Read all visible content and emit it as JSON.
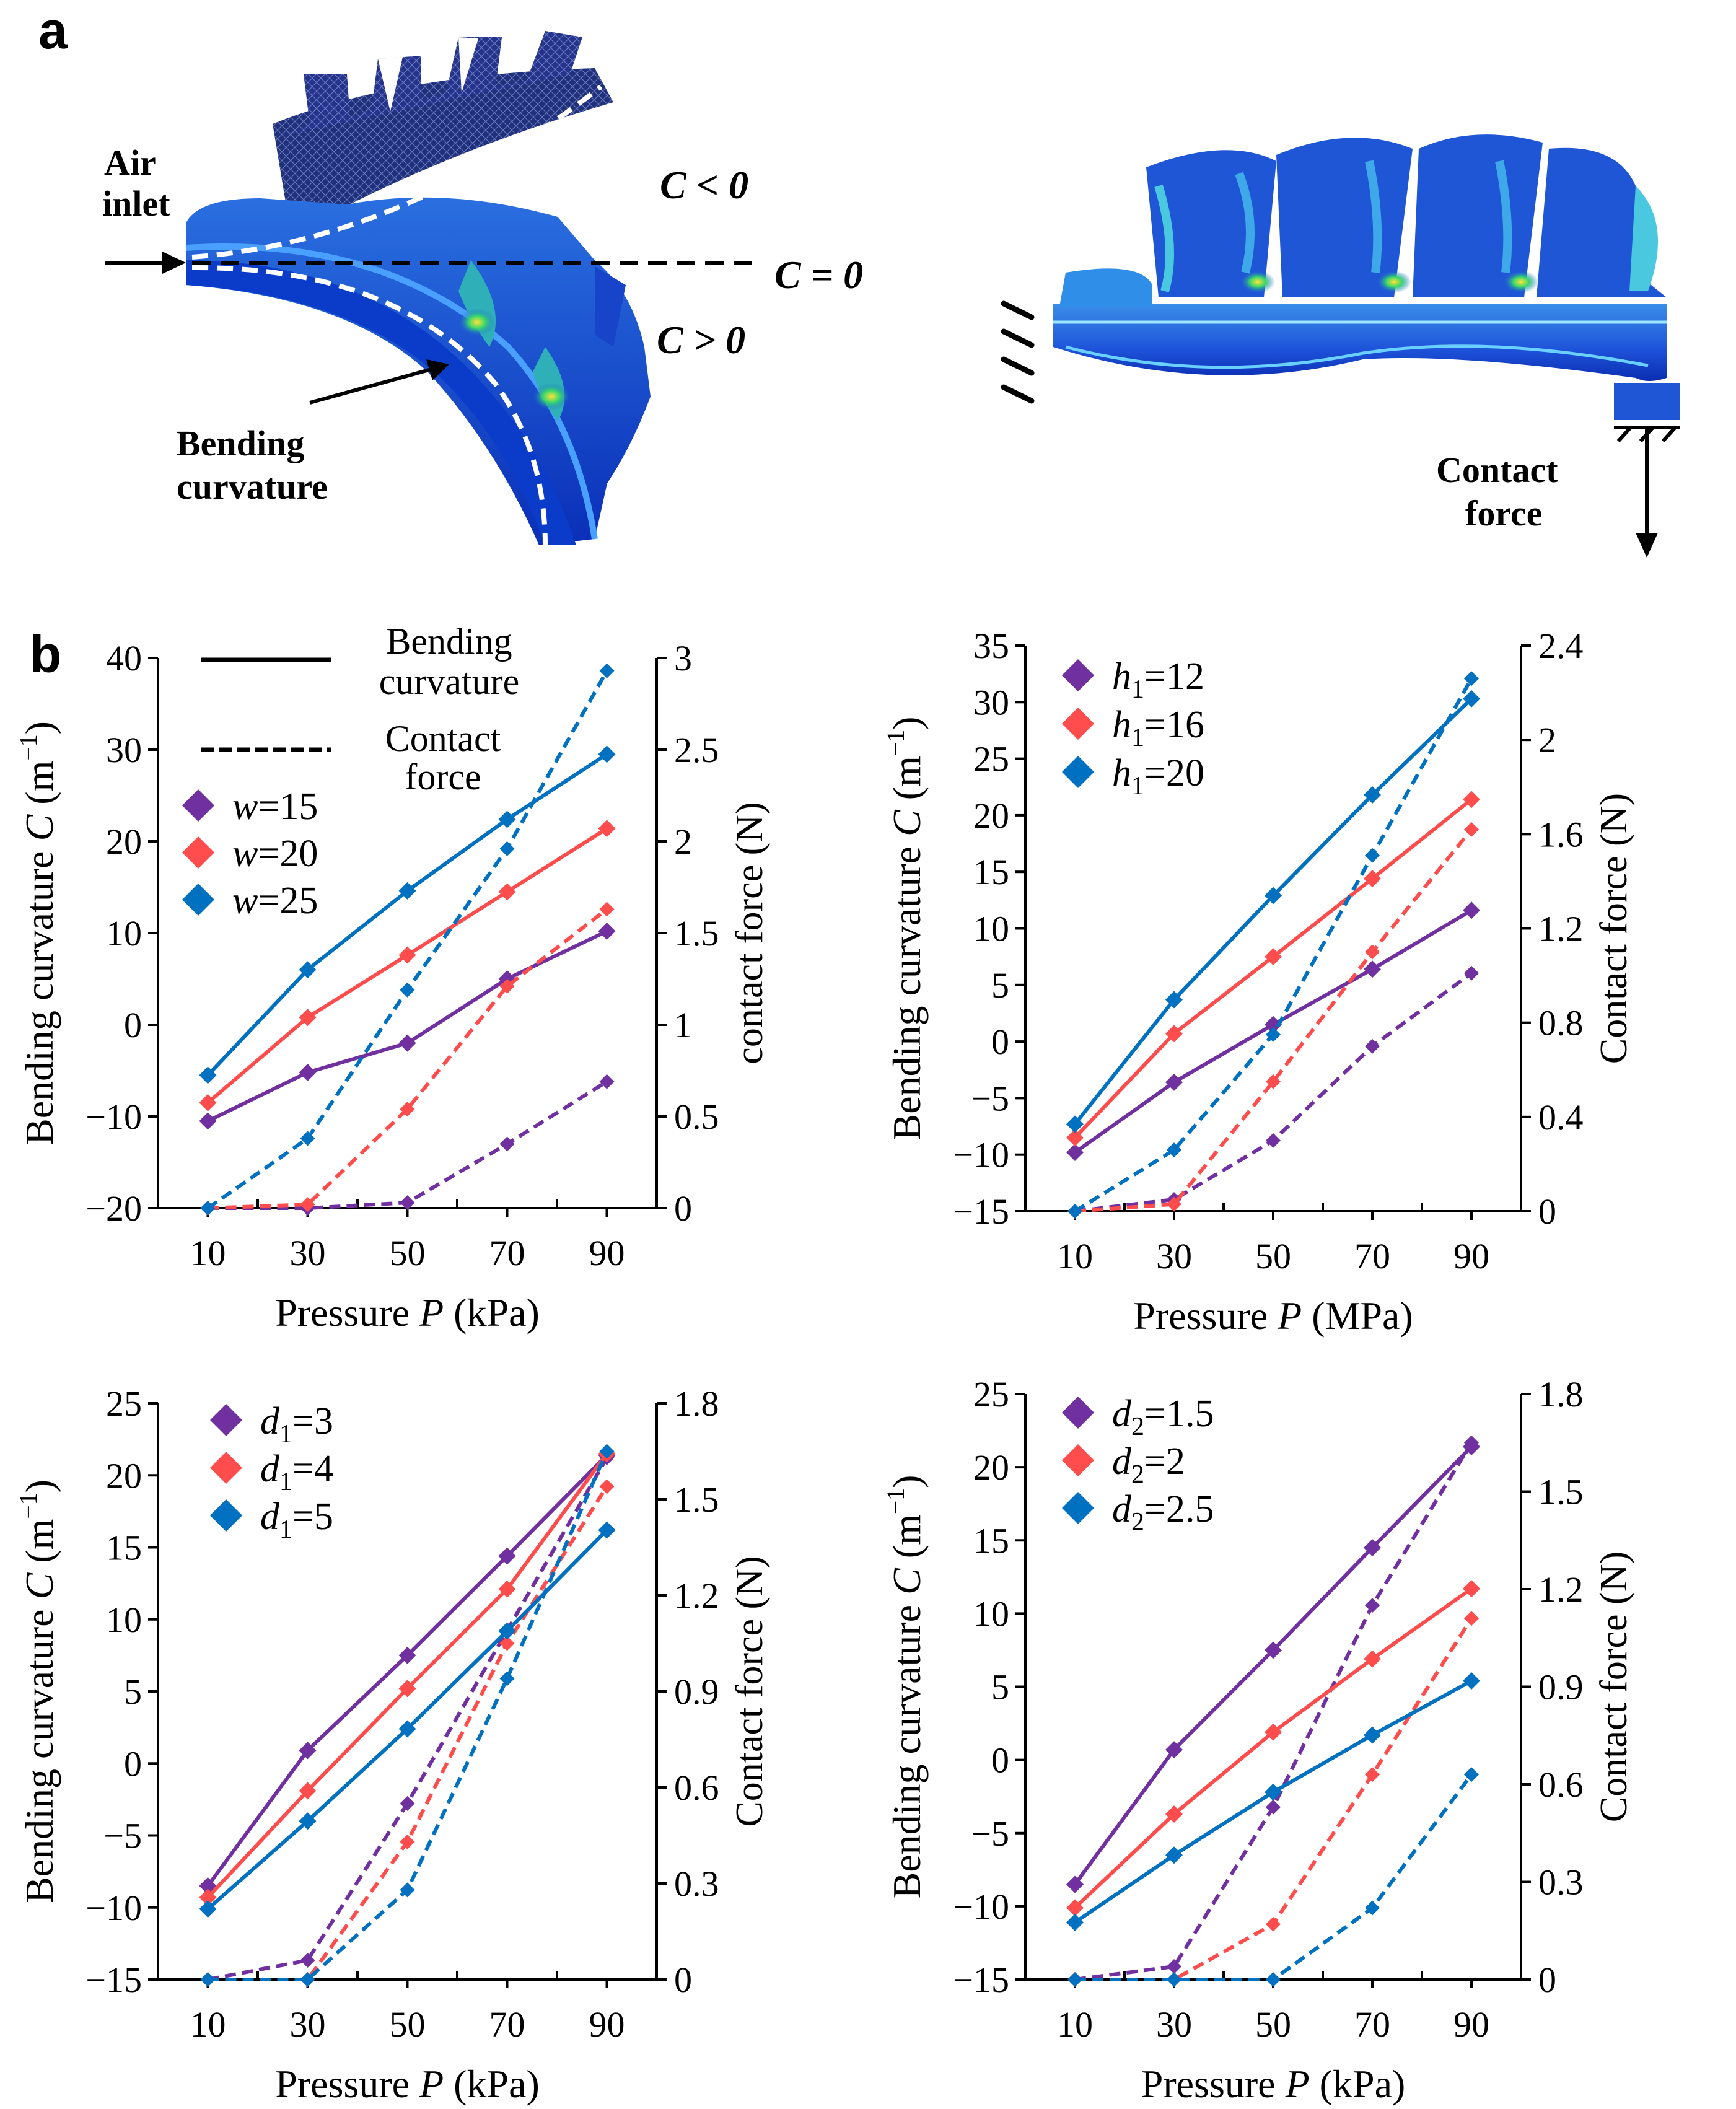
{
  "panel_a": {
    "letter": "a",
    "air_inlet_line1": "Air",
    "air_inlet_line2": "inlet",
    "c_less": "C < 0",
    "c_zero": "C = 0",
    "c_greater": "C > 0",
    "bending_line1": "Bending",
    "bending_line2": "curvature",
    "contact_line1": "Contact",
    "contact_line2": "force"
  },
  "panel_b": {
    "letter": "b"
  },
  "colors": {
    "purple": "#7030a0",
    "red": "#ff4d4d",
    "blue": "#0070c0",
    "axis": "#000000"
  },
  "chart_data": [
    {
      "id": "w",
      "type": "line",
      "xlabel": "Pressure P (kPa)",
      "ylabel_left": "Bending curvature C (m⁻¹)",
      "ylabel_right": "contact force (N)",
      "x": [
        10,
        30,
        50,
        70,
        90
      ],
      "xlim": [
        0,
        100
      ],
      "ylim_left": [
        -20,
        40
      ],
      "yticks_left": [
        -20,
        -10,
        0,
        10,
        20,
        30,
        40
      ],
      "yticks_left_labels": [
        "−20",
        "−10",
        "0",
        "10",
        "20",
        "30",
        "40"
      ],
      "ylim_right": [
        0,
        3
      ],
      "yticks_right": [
        0,
        0.5,
        1,
        1.5,
        2,
        2.5,
        3
      ],
      "yticks_right_labels": [
        "0",
        "0.5",
        "1",
        "1.5",
        "2",
        "2.5",
        "3"
      ],
      "style_legend": {
        "solid": "Bending curvature",
        "dashed": "Contact force"
      },
      "series": [
        {
          "name": "w=15",
          "color": "purple",
          "curvature": [
            -10.5,
            -5.2,
            -2.0,
            5.0,
            10.2
          ],
          "force": [
            0,
            0,
            0.03,
            0.35,
            0.69
          ]
        },
        {
          "name": "w=20",
          "color": "red",
          "curvature": [
            -8.5,
            0.8,
            7.6,
            14.5,
            21.4
          ],
          "force": [
            0,
            0.02,
            0.54,
            1.21,
            1.63
          ]
        },
        {
          "name": "w=25",
          "color": "blue",
          "curvature": [
            -5.5,
            6.0,
            14.6,
            22.4,
            29.5
          ],
          "force": [
            0,
            0.38,
            1.19,
            1.96,
            2.93
          ]
        }
      ]
    },
    {
      "id": "h1",
      "type": "line",
      "xlabel": "Pressure P (MPa)",
      "ylabel_left": "Bending curvature C (m⁻¹)",
      "ylabel_right": "Contact force (N)",
      "x": [
        10,
        30,
        50,
        70,
        90
      ],
      "xlim": [
        0,
        100
      ],
      "ylim_left": [
        -15,
        35
      ],
      "yticks_left": [
        -15,
        -10,
        -5,
        0,
        5,
        10,
        15,
        20,
        25,
        30,
        35
      ],
      "yticks_left_labels": [
        "−15",
        "−10",
        "−5",
        "0",
        "5",
        "10",
        "15",
        "20",
        "25",
        "30",
        "35"
      ],
      "ylim_right": [
        0,
        2.4
      ],
      "yticks_right": [
        0,
        0.4,
        0.8,
        1.2,
        1.6,
        2,
        2.4
      ],
      "yticks_right_labels": [
        "0",
        "0.4",
        "0.8",
        "1.2",
        "1.6",
        "2",
        "2.4"
      ],
      "series": [
        {
          "name": "h1=12",
          "name_base": "h",
          "name_sub": "1",
          "name_rest": "=12",
          "color": "purple",
          "curvature": [
            -9.8,
            -3.6,
            1.5,
            6.4,
            11.6
          ],
          "force": [
            0,
            0.05,
            0.3,
            0.7,
            1.01
          ]
        },
        {
          "name": "h1=16",
          "name_base": "h",
          "name_sub": "1",
          "name_rest": "=16",
          "color": "red",
          "curvature": [
            -8.5,
            0.7,
            7.5,
            14.4,
            21.4
          ],
          "force": [
            0,
            0.03,
            0.55,
            1.1,
            1.62
          ]
        },
        {
          "name": "h1=20",
          "name_base": "h",
          "name_sub": "1",
          "name_rest": "=20",
          "color": "blue",
          "curvature": [
            -7.3,
            3.7,
            12.9,
            21.8,
            30.3
          ],
          "force": [
            0,
            0.26,
            0.75,
            1.51,
            2.26
          ]
        }
      ]
    },
    {
      "id": "d1",
      "type": "line",
      "xlabel": "Pressure P (kPa)",
      "ylabel_left": "Bending curvature C (m⁻¹)",
      "ylabel_right": "Contact force (N)",
      "x": [
        10,
        30,
        50,
        70,
        90
      ],
      "xlim": [
        0,
        100
      ],
      "ylim_left": [
        -15,
        25
      ],
      "yticks_left": [
        -15,
        -10,
        -5,
        0,
        5,
        10,
        15,
        20,
        25
      ],
      "yticks_left_labels": [
        "−15",
        "−10",
        "−5",
        "0",
        "5",
        "10",
        "15",
        "20",
        "25"
      ],
      "ylim_right": [
        0,
        1.8
      ],
      "yticks_right": [
        0,
        0.3,
        0.6,
        0.9,
        1.2,
        1.5,
        1.8
      ],
      "yticks_right_labels": [
        "0",
        "0.3",
        "0.6",
        "0.9",
        "1.2",
        "1.5",
        "1.8"
      ],
      "series": [
        {
          "name": "d1=3",
          "name_base": "d",
          "name_sub": "1",
          "name_rest": "=3",
          "color": "purple",
          "curvature": [
            -8.5,
            0.9,
            7.5,
            14.4,
            21.4
          ],
          "force": [
            0,
            0.06,
            0.55,
            1.09,
            1.63
          ]
        },
        {
          "name": "d1=4",
          "name_base": "d",
          "name_sub": "1",
          "name_rest": "=4",
          "color": "red",
          "curvature": [
            -9.3,
            -1.9,
            5.2,
            12.1,
            21.5
          ],
          "force": [
            0,
            0,
            0.43,
            1.05,
            1.54
          ]
        },
        {
          "name": "d1=5",
          "name_base": "d",
          "name_sub": "1",
          "name_rest": "=5",
          "color": "blue",
          "curvature": [
            -10.1,
            -4.0,
            2.4,
            9.2,
            16.2
          ],
          "force": [
            0,
            0,
            0.28,
            0.94,
            1.65
          ]
        }
      ]
    },
    {
      "id": "d2",
      "type": "line",
      "xlabel": "Pressure P (kPa)",
      "ylabel_left": "Bending curvature C (m⁻¹)",
      "ylabel_right": "Contact force (N)",
      "x": [
        10,
        30,
        50,
        70,
        90
      ],
      "xlim": [
        0,
        100
      ],
      "ylim_left": [
        -15,
        25
      ],
      "yticks_left": [
        -15,
        -10,
        -5,
        0,
        5,
        10,
        15,
        20,
        25
      ],
      "yticks_left_labels": [
        "−15",
        "−10",
        "−5",
        "0",
        "5",
        "10",
        "15",
        "20",
        "25"
      ],
      "ylim_right": [
        0,
        1.8
      ],
      "yticks_right": [
        0,
        0.3,
        0.6,
        0.9,
        1.2,
        1.5,
        1.8
      ],
      "yticks_right_labels": [
        "0",
        "0.3",
        "0.6",
        "0.9",
        "1.2",
        "1.5",
        "1.8"
      ],
      "series": [
        {
          "name": "d2=1.5",
          "name_base": "d",
          "name_sub": "2",
          "name_rest": "=1.5",
          "color": "purple",
          "curvature": [
            -8.5,
            0.7,
            7.5,
            14.5,
            21.4
          ],
          "force": [
            0,
            0.04,
            0.53,
            1.15,
            1.65
          ]
        },
        {
          "name": "d2=2",
          "name_base": "d",
          "name_sub": "2",
          "name_rest": "=2",
          "color": "red",
          "curvature": [
            -10.1,
            -3.7,
            1.9,
            6.9,
            11.7
          ],
          "force": [
            0,
            0,
            0.17,
            0.63,
            1.11
          ]
        },
        {
          "name": "d2=2.5",
          "name_base": "d",
          "name_sub": "2",
          "name_rest": "=2.5",
          "color": "blue",
          "curvature": [
            -11.1,
            -6.5,
            -2.2,
            1.7,
            5.4
          ],
          "force": [
            0,
            0,
            0,
            0.22,
            0.63
          ]
        }
      ]
    }
  ]
}
